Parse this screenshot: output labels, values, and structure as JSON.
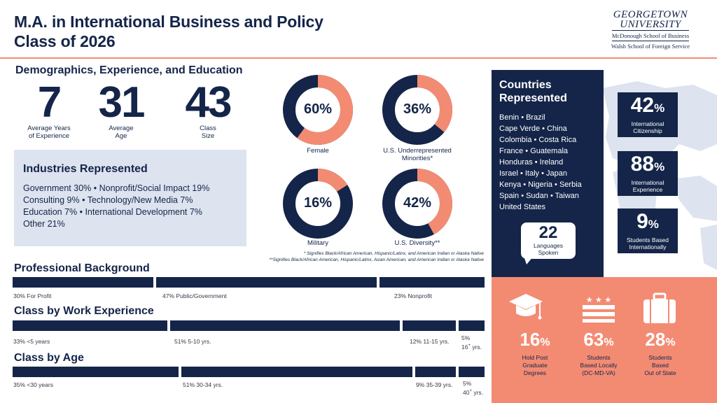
{
  "header": {
    "title_line1": "M.A. in International Business and Policy",
    "title_line2": "Class of 2026",
    "logo": {
      "line1": "GEORGETOWN",
      "line2": "UNIVERSITY",
      "school1": "McDonough School of Business",
      "school2": "Walsh School of Foreign Service"
    }
  },
  "demographics": {
    "title": "Demographics, Experience, and Education",
    "stats": [
      {
        "value": "7",
        "label1": "Average Years",
        "label2": "of Experience"
      },
      {
        "value": "31",
        "label1": "Average",
        "label2": "Age"
      },
      {
        "value": "43",
        "label1": "Class",
        "label2": "Size"
      }
    ]
  },
  "industries": {
    "title": "Industries Represented",
    "lines": [
      "Government 30% • Nonprofit/Social Impact 19%",
      "Consulting 9% • Technology/New Media 7%",
      "Education 7% • International Development 7%",
      "Other 21%"
    ]
  },
  "donuts": [
    {
      "pct_text": "60%",
      "value": 0.6,
      "label1": "Female",
      "label2": ""
    },
    {
      "pct_text": "36%",
      "value": 0.36,
      "label1": "U.S. Underrepresented",
      "label2": "Minorities*"
    },
    {
      "pct_text": "16%",
      "value": 0.16,
      "label1": "Military",
      "label2": ""
    },
    {
      "pct_text": "42%",
      "value": 0.42,
      "label1": "U.S. Diversity**",
      "label2": ""
    }
  ],
  "footnotes": {
    "line1": "* Signifies Black/African American, Hispanic/Latinx, and American Indian or Alaska Native",
    "line2": "**Signifies Black/African American, Hispanic/Latinx, Asian American, and American Indian or Alaska Native"
  },
  "professional_background": {
    "title": "Professional Background",
    "segments": [
      {
        "share": 30,
        "label": "30% For Profit"
      },
      {
        "share": 47,
        "label": "47% Public/Government"
      },
      {
        "share": 23,
        "label": "23% Nonprofit"
      }
    ]
  },
  "work_experience": {
    "title": "Class by Work Experience",
    "segments": [
      {
        "share": 33,
        "label": "33% <5 years",
        "sup": ""
      },
      {
        "share": 51,
        "label": "51% 5-10 yrs.",
        "sup": ""
      },
      {
        "share": 12,
        "label": "12% 11-15 yrs.",
        "sup": ""
      },
      {
        "share": 5,
        "label": "5%",
        "label2": "16",
        "sup": "+",
        "unit": " yrs."
      }
    ]
  },
  "age": {
    "title": "Class by Age",
    "segments": [
      {
        "share": 35,
        "label": "35% <30 years"
      },
      {
        "share": 51,
        "label": "51% 30-34 yrs."
      },
      {
        "share": 9,
        "label": "9% 35-39 yrs."
      },
      {
        "share": 5,
        "label": "5%",
        "label2": "40",
        "sup": "+",
        "unit": " yrs."
      }
    ]
  },
  "countries": {
    "title": "Countries Represented",
    "lines": [
      "Benin • Brazil",
      "Cape Verde • China",
      "Colombia • Costa Rica",
      "France • Guatemala",
      "Honduras • Ireland",
      "Israel • Italy • Japan",
      "Kenya • Nigeria • Serbia",
      "Spain • Sudan • Taiwan",
      "United States"
    ],
    "languages_value": "22",
    "languages_label1": "Languages",
    "languages_label2": "Spoken"
  },
  "right_stats": [
    {
      "value": "42",
      "pct": "%",
      "label1": "International",
      "label2": "Citizenship"
    },
    {
      "value": "88",
      "pct": "%",
      "label1": "International",
      "label2": "Experience"
    },
    {
      "value": "9",
      "pct": "%",
      "label1": "Students Based",
      "label2": "Internationally"
    }
  ],
  "bottom_stats": [
    {
      "icon": "graduation-cap-icon",
      "value": "16",
      "pct": "%",
      "label1": "Hold Post",
      "label2": "Graduate",
      "label3": "Degrees"
    },
    {
      "icon": "us-flag-icon",
      "value": "63",
      "pct": "%",
      "label1": "Students",
      "label2": "Based Locally",
      "label3": "(DC-MD-VA)"
    },
    {
      "icon": "suitcase-icon",
      "value": "28",
      "pct": "%",
      "label1": "Students",
      "label2": "Based",
      "label3": "Out of State"
    }
  ],
  "colors": {
    "navy": "#142549",
    "coral": "#f38b73",
    "light_blue": "#dde3ef"
  }
}
